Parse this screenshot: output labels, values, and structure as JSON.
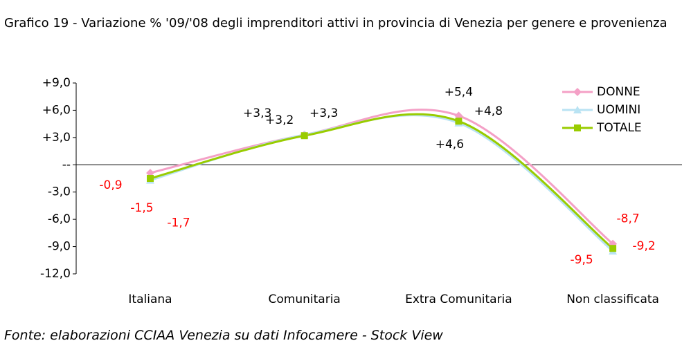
{
  "chart_data": {
    "type": "line",
    "title": "Grafico 19 - Variazione % '09/'08 degli imprenditori attivi in provincia di Venezia per genere e provenienza",
    "source": "Fonte: elaborazioni CCIAA Venezia su dati Infocamere - Stock View",
    "categories": [
      "Italiana",
      "Comunitaria",
      "Extra Comunitaria",
      "Non classificata"
    ],
    "series": [
      {
        "name": "DONNE",
        "color": "#f4a0c6",
        "marker": "diamond",
        "values": [
          -0.9,
          3.3,
          5.4,
          -8.7
        ],
        "value_labels": [
          "-0,9",
          "+3,3",
          "+5,4",
          "-8,7"
        ]
      },
      {
        "name": "UOMINI",
        "color": "#b9e3f3",
        "marker": "triangle",
        "values": [
          -1.7,
          3.3,
          4.6,
          -9.5
        ],
        "value_labels": [
          "-1,7",
          "+3,3",
          "+4,6",
          "-9,5"
        ]
      },
      {
        "name": "TOTALE",
        "color": "#99cc00",
        "marker": "square",
        "values": [
          -1.5,
          3.2,
          4.8,
          -9.2
        ],
        "value_labels": [
          "-1,5",
          "+3,2",
          "+4,8",
          "-9,2"
        ]
      }
    ],
    "ylim": [
      -12,
      9
    ],
    "yticks": [
      {
        "value": 9,
        "label": "+9,0"
      },
      {
        "value": 6,
        "label": "+6,0"
      },
      {
        "value": 3,
        "label": "+3,0"
      },
      {
        "value": 0,
        "label": "--"
      },
      {
        "value": -3,
        "label": "-3,0"
      },
      {
        "value": -6,
        "label": "-6,0"
      },
      {
        "value": -9,
        "label": "-9,0"
      },
      {
        "value": -12,
        "label": "-12,0"
      }
    ],
    "smooth": true,
    "legend": "top-right"
  }
}
